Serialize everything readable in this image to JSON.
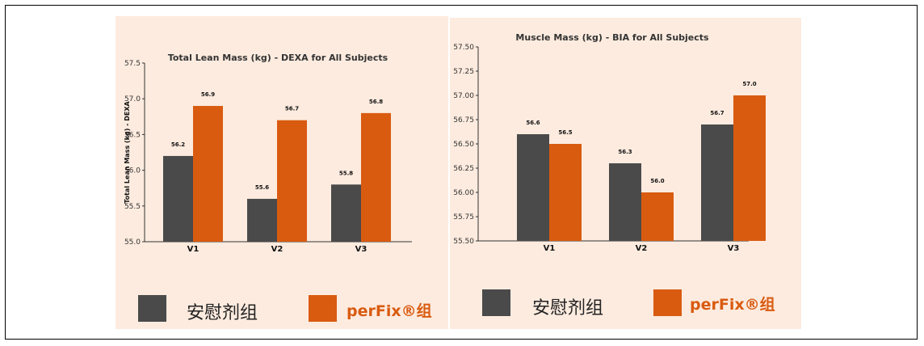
{
  "colors": {
    "placebo": "#4a4a4a",
    "perfix": "#d95b10",
    "panel_bg": "#fdebdf"
  },
  "legend": {
    "placebo_label": "安慰剂组",
    "perfix_label": "perFix®组"
  },
  "chart_data": [
    {
      "type": "bar",
      "title": "Total Lean Mass (kg) - DEXA for All Subjects",
      "ylabel": "Total Lean Mass (kg) - DEXA",
      "xlabel": "",
      "categories": [
        "V1",
        "V2",
        "V3"
      ],
      "ylim": [
        55.0,
        57.5
      ],
      "yticks": [
        "55.0",
        "55.5",
        "56.0",
        "56.5",
        "57.0",
        "57.5"
      ],
      "series": [
        {
          "name": "安慰剂组",
          "values": [
            56.2,
            55.6,
            55.8
          ],
          "labels": [
            "56.2",
            "55.6",
            "55.8"
          ]
        },
        {
          "name": "perFix®组",
          "values": [
            56.9,
            56.7,
            56.8
          ],
          "labels": [
            "56.9",
            "56.7",
            "56.8"
          ]
        }
      ]
    },
    {
      "type": "bar",
      "title": "Muscle Mass (kg) - BIA for All Subjects",
      "ylabel": "",
      "xlabel": "",
      "categories": [
        "V1",
        "V2",
        "V3"
      ],
      "ylim": [
        55.5,
        57.5
      ],
      "yticks": [
        "55.50",
        "55.75",
        "56.00",
        "56.25",
        "56.50",
        "56.75",
        "57.00",
        "57.25",
        "57.50"
      ],
      "series": [
        {
          "name": "安慰剂组",
          "values": [
            56.6,
            56.3,
            56.7
          ],
          "labels": [
            "56.6",
            "56.3",
            "56.7"
          ]
        },
        {
          "name": "perFix®组",
          "values": [
            56.5,
            56.0,
            57.0
          ],
          "labels": [
            "56.5",
            "56.0",
            "57.0"
          ]
        }
      ]
    }
  ]
}
